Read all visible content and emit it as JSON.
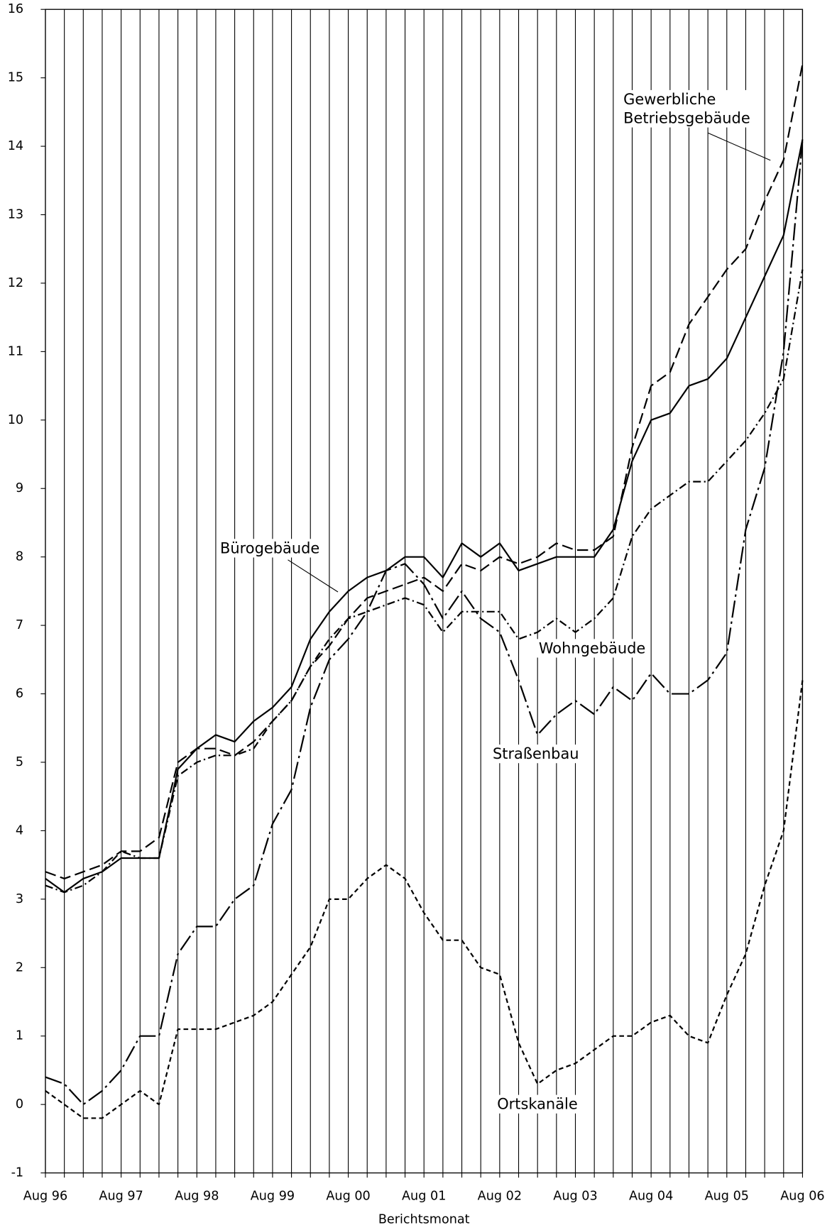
{
  "chart_data": {
    "type": "line",
    "x_label": "Berichtsmonat",
    "categories": [
      "Aug 96",
      null,
      null,
      null,
      "Aug 97",
      null,
      null,
      null,
      "Aug 98",
      null,
      null,
      null,
      "Aug 99",
      null,
      null,
      null,
      "Aug 00",
      null,
      null,
      null,
      "Aug 01",
      null,
      null,
      null,
      "Aug 02",
      null,
      null,
      null,
      "Aug 03",
      null,
      null,
      null,
      "Aug 04",
      null,
      null,
      null,
      "Aug 05",
      null,
      null,
      null,
      "Aug 06"
    ],
    "ylim": [
      -1,
      16
    ],
    "yticks": [
      -1,
      0,
      1,
      2,
      3,
      4,
      5,
      6,
      7,
      8,
      9,
      10,
      11,
      12,
      13,
      14,
      15,
      16
    ],
    "grid": true,
    "series": [
      {
        "name": "Gewerbliche Betriebsgebäude",
        "color": "#000000",
        "dash": "14 6",
        "values": [
          3.4,
          3.3,
          3.4,
          3.5,
          3.7,
          3.7,
          3.9,
          5.0,
          5.2,
          5.2,
          5.1,
          5.3,
          5.6,
          5.9,
          6.4,
          6.7,
          7.1,
          7.4,
          7.5,
          7.6,
          7.7,
          7.5,
          7.9,
          7.8,
          8.0,
          7.9,
          8.0,
          8.2,
          8.1,
          8.1,
          8.3,
          9.6,
          10.5,
          10.7,
          11.4,
          11.8,
          12.2,
          12.5,
          13.2,
          13.8,
          15.2
        ]
      },
      {
        "name": "Bürogebäude",
        "color": "#000000",
        "dash": "none",
        "values": [
          3.3,
          3.1,
          3.3,
          3.4,
          3.6,
          3.6,
          3.6,
          4.9,
          5.2,
          5.4,
          5.3,
          5.6,
          5.8,
          6.1,
          6.8,
          7.2,
          7.5,
          7.7,
          7.8,
          8.0,
          8.0,
          7.7,
          8.2,
          8.0,
          8.2,
          7.8,
          7.9,
          8.0,
          8.0,
          8.0,
          8.4,
          9.4,
          10.0,
          10.1,
          10.5,
          10.6,
          10.9,
          11.5,
          12.1,
          12.7,
          14.1
        ]
      },
      {
        "name": "Wohngebäude",
        "color": "#000000",
        "dash": "10 4 2 4",
        "values": [
          3.2,
          3.1,
          3.2,
          3.4,
          3.7,
          3.6,
          3.6,
          4.8,
          5.0,
          5.1,
          5.1,
          5.2,
          5.6,
          5.9,
          6.4,
          6.8,
          7.1,
          7.2,
          7.3,
          7.4,
          7.3,
          6.9,
          7.2,
          7.2,
          7.2,
          6.8,
          6.9,
          7.1,
          6.9,
          7.1,
          7.4,
          8.3,
          8.7,
          8.9,
          9.1,
          9.1,
          9.4,
          9.7,
          10.1,
          10.6,
          12.2
        ]
      },
      {
        "name": "Straßenbau",
        "color": "#000000",
        "dash": "22 5 3 5",
        "values": [
          0.4,
          0.3,
          0.0,
          0.2,
          0.5,
          1.0,
          1.0,
          2.2,
          2.6,
          2.6,
          3.0,
          3.2,
          4.1,
          4.6,
          5.8,
          6.5,
          6.8,
          7.2,
          7.8,
          7.9,
          7.6,
          7.1,
          7.5,
          7.1,
          6.9,
          6.2,
          5.4,
          5.7,
          5.9,
          5.7,
          6.1,
          5.9,
          6.3,
          6.0,
          6.0,
          6.2,
          6.6,
          8.4,
          9.3,
          11.0,
          14.1
        ]
      },
      {
        "name": "Ortskanäle",
        "color": "#000000",
        "dash": "6 4",
        "values": [
          0.2,
          0.0,
          -0.2,
          -0.2,
          0.0,
          0.2,
          0.0,
          1.1,
          1.1,
          1.1,
          1.2,
          1.3,
          1.5,
          1.9,
          2.3,
          3.0,
          3.0,
          3.3,
          3.5,
          3.3,
          2.8,
          2.4,
          2.4,
          2.0,
          1.9,
          0.9,
          0.3,
          0.5,
          0.6,
          0.8,
          1.0,
          1.0,
          1.2,
          1.3,
          1.0,
          0.9,
          1.6,
          2.2,
          3.2,
          4.0,
          6.2
        ]
      }
    ]
  }
}
